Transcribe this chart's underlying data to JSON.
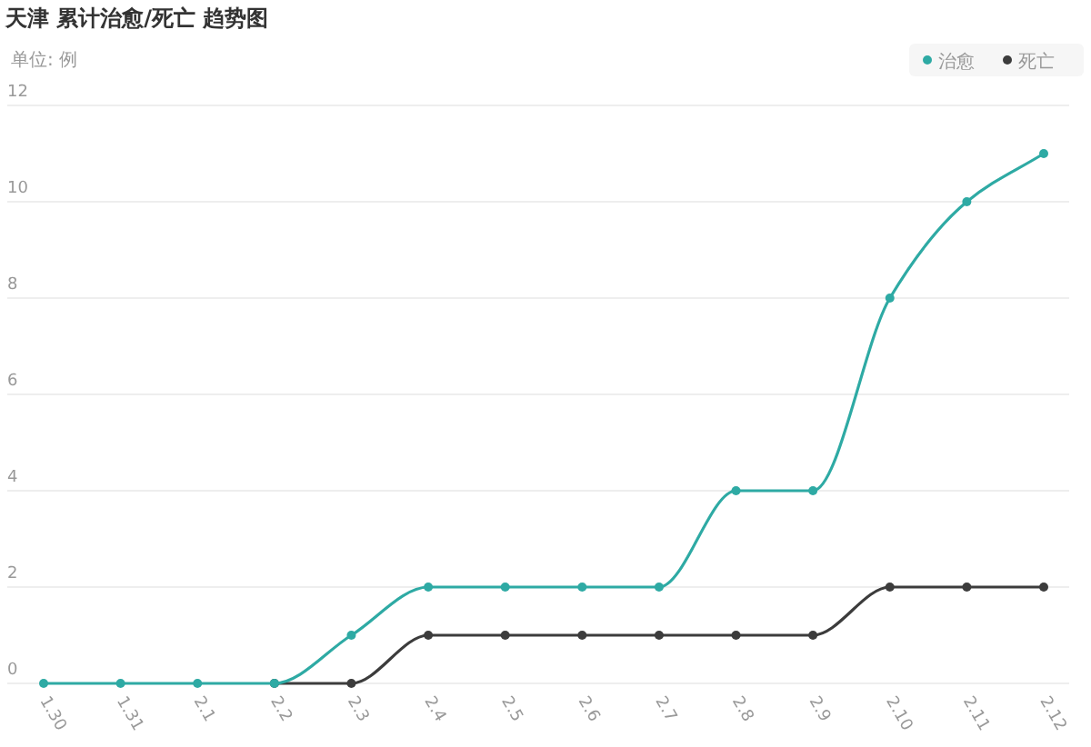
{
  "chart_data": {
    "type": "line",
    "title": "天津 累计治愈/死亡 趋势图",
    "ylabel": "单位: 例",
    "categories": [
      "1.30",
      "1.31",
      "2.1",
      "2.2",
      "2.3",
      "2.4",
      "2.5",
      "2.6",
      "2.7",
      "2.8",
      "2.9",
      "2.10",
      "2.11",
      "2.12"
    ],
    "series": [
      {
        "name": "治愈",
        "color": "#2eaaa4",
        "values": [
          0,
          0,
          0,
          0,
          1,
          2,
          2,
          2,
          2,
          4,
          4,
          8,
          10,
          11
        ]
      },
      {
        "name": "死亡",
        "color": "#3c3c3c",
        "values": [
          null,
          null,
          null,
          0,
          0,
          1,
          1,
          1,
          1,
          1,
          1,
          2,
          2,
          2
        ]
      }
    ],
    "ylim": [
      0,
      12
    ],
    "yticks": [
      0,
      2,
      4,
      6,
      8,
      10,
      12
    ],
    "grid": "y",
    "legend": "top right",
    "marker": "circle",
    "line_style": "solid"
  }
}
